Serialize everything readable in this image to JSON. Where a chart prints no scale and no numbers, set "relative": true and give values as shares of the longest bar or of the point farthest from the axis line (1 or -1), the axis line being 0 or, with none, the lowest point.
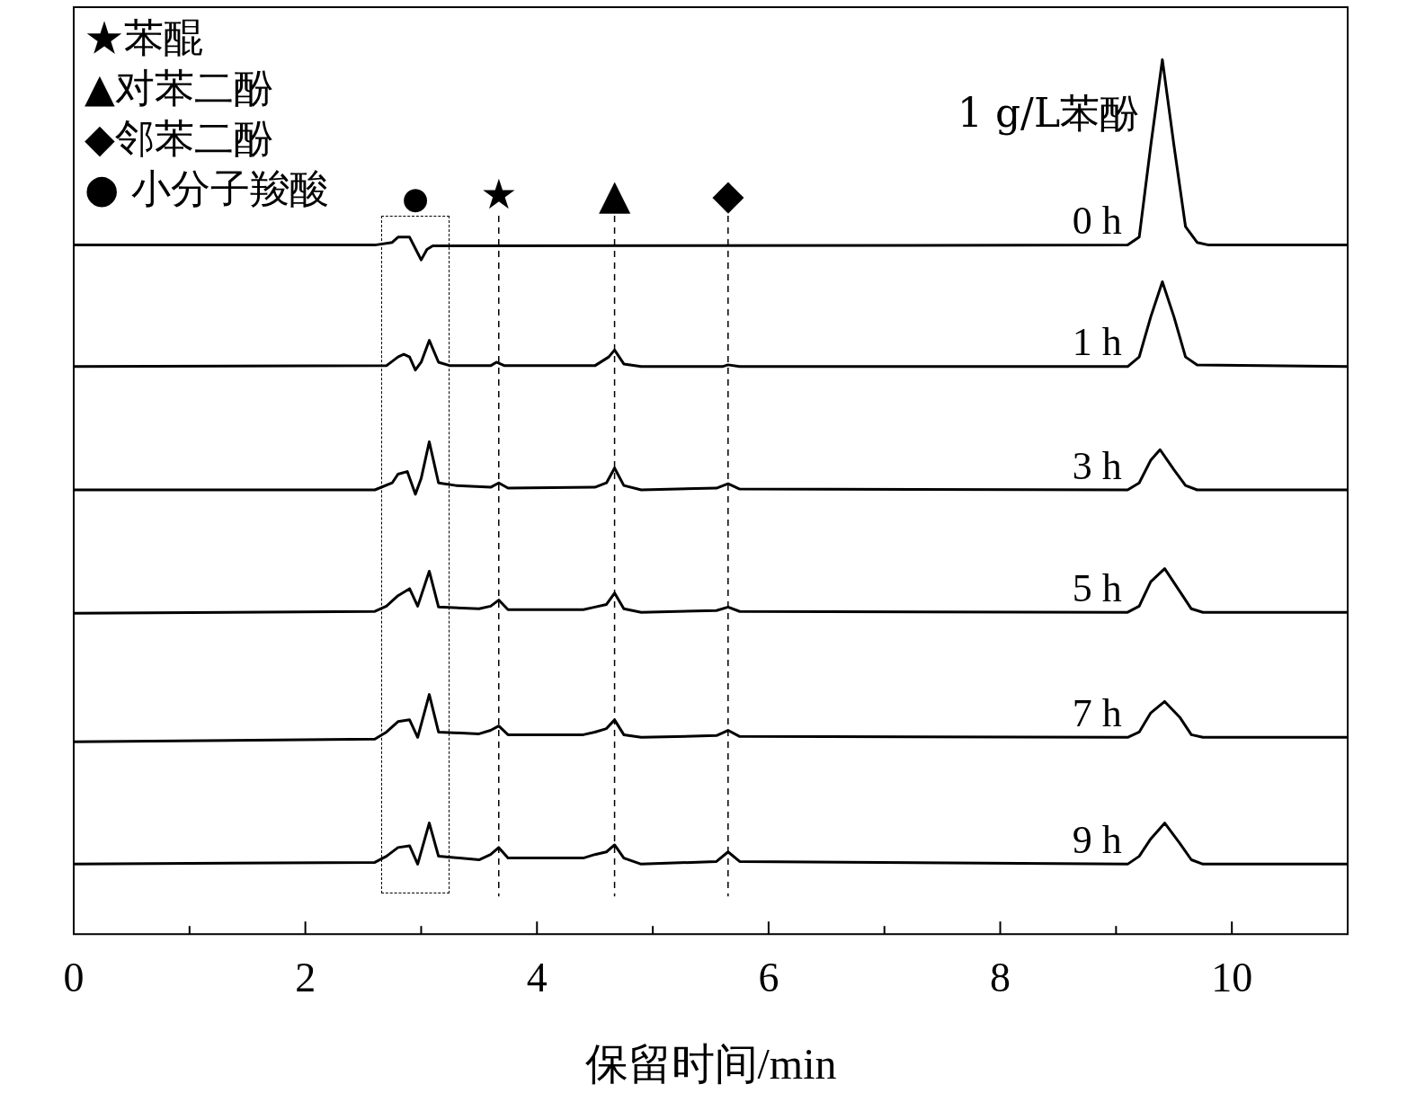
{
  "chart_data": {
    "type": "line",
    "relative": true,
    "xlabel": "保留时间/min",
    "xlim": [
      0,
      11
    ],
    "xticks": [
      0,
      {
        "value": 1,
        "label": null
      },
      2,
      {
        "value": 3,
        "label": null
      },
      4,
      {
        "value": 5,
        "label": null
      },
      6,
      {
        "value": 7,
        "label": null
      },
      8,
      {
        "value": 9,
        "label": null
      },
      10
    ],
    "tick_labels": "x",
    "grid": false,
    "legend": false,
    "marker": "none",
    "line_style": "solid",
    "annotations": [
      "★苯醌",
      "▲对苯二酚",
      "◆邻苯二酚",
      "● 小分子羧酸",
      "1 g/L苯酚",
      "●"
    ],
    "ref_lines": [
      {
        "axis": "x",
        "value": 3.67,
        "label": "★",
        "line_style": "dashed"
      },
      {
        "axis": "x",
        "value": 4.67,
        "label": "▲",
        "line_style": "dashed"
      },
      {
        "axis": "x",
        "value": 5.65,
        "label": "◆",
        "line_style": "dashed"
      }
    ],
    "series": [
      {
        "name": "0 h",
        "color": "#000000",
        "x": [
          0,
          2.6,
          2.75,
          2.8,
          2.9,
          2.95,
          3.0,
          3.05,
          3.1,
          9.1,
          9.2,
          9.3,
          9.4,
          9.5,
          9.6,
          9.7,
          9.8,
          11
        ],
        "values": [
          0.788,
          0.788,
          0.791,
          0.797,
          0.797,
          0.784,
          0.771,
          0.783,
          0.787,
          0.788,
          0.797,
          0.902,
          1.0,
          0.902,
          0.809,
          0.791,
          0.788,
          0.788
        ]
      },
      {
        "name": "1 h",
        "color": "#000000",
        "x": [
          0,
          2.7,
          2.8,
          2.85,
          2.9,
          2.95,
          3.0,
          3.07,
          3.15,
          3.25,
          3.6,
          3.65,
          3.72,
          4.5,
          4.62,
          4.67,
          4.75,
          4.9,
          5.6,
          5.65,
          5.75,
          9.1,
          9.2,
          9.3,
          9.4,
          9.5,
          9.6,
          9.7,
          11
        ],
        "values": [
          0.649,
          0.65,
          0.66,
          0.663,
          0.66,
          0.645,
          0.654,
          0.679,
          0.654,
          0.65,
          0.65,
          0.654,
          0.65,
          0.65,
          0.66,
          0.668,
          0.652,
          0.649,
          0.649,
          0.651,
          0.649,
          0.649,
          0.66,
          0.706,
          0.746,
          0.706,
          0.66,
          0.651,
          0.649
        ]
      },
      {
        "name": "3 h",
        "color": "#000000",
        "x": [
          0,
          2.6,
          2.75,
          2.8,
          2.88,
          2.95,
          3.0,
          3.07,
          3.15,
          3.3,
          3.6,
          3.67,
          3.75,
          4.5,
          4.6,
          4.67,
          4.75,
          4.9,
          5.55,
          5.65,
          5.75,
          9.1,
          9.2,
          9.3,
          9.38,
          9.5,
          9.6,
          9.7,
          11
        ],
        "values": [
          0.508,
          0.508,
          0.516,
          0.526,
          0.529,
          0.503,
          0.521,
          0.563,
          0.516,
          0.513,
          0.511,
          0.516,
          0.51,
          0.511,
          0.516,
          0.533,
          0.513,
          0.508,
          0.51,
          0.515,
          0.509,
          0.508,
          0.516,
          0.542,
          0.554,
          0.531,
          0.513,
          0.508,
          0.508
        ]
      },
      {
        "name": "5 h",
        "color": "#000000",
        "x": [
          0,
          2.6,
          2.7,
          2.8,
          2.9,
          2.97,
          3.07,
          3.15,
          3.5,
          3.6,
          3.67,
          3.75,
          4.4,
          4.5,
          4.6,
          4.67,
          4.75,
          4.9,
          5.55,
          5.65,
          5.75,
          9.1,
          9.2,
          9.3,
          9.42,
          9.55,
          9.65,
          9.75,
          11
        ],
        "values": [
          0.367,
          0.369,
          0.375,
          0.387,
          0.395,
          0.375,
          0.415,
          0.374,
          0.372,
          0.375,
          0.382,
          0.371,
          0.371,
          0.374,
          0.377,
          0.39,
          0.372,
          0.368,
          0.37,
          0.374,
          0.369,
          0.368,
          0.375,
          0.403,
          0.418,
          0.392,
          0.372,
          0.368,
          0.368
        ]
      },
      {
        "name": "7 h",
        "color": "#000000",
        "x": [
          0,
          2.6,
          2.7,
          2.8,
          2.9,
          2.97,
          3.07,
          3.15,
          3.5,
          3.6,
          3.67,
          3.75,
          4.4,
          4.5,
          4.6,
          4.67,
          4.75,
          4.9,
          5.55,
          5.65,
          5.75,
          9.1,
          9.2,
          9.3,
          9.42,
          9.55,
          9.65,
          9.75,
          11
        ],
        "values": [
          0.22,
          0.223,
          0.231,
          0.243,
          0.245,
          0.225,
          0.274,
          0.231,
          0.229,
          0.233,
          0.238,
          0.228,
          0.228,
          0.231,
          0.235,
          0.245,
          0.228,
          0.225,
          0.227,
          0.233,
          0.226,
          0.225,
          0.231,
          0.253,
          0.266,
          0.248,
          0.228,
          0.225,
          0.225
        ]
      },
      {
        "name": "9 h",
        "color": "#000000",
        "x": [
          0,
          2.6,
          2.7,
          2.8,
          2.9,
          2.97,
          3.07,
          3.15,
          3.5,
          3.6,
          3.67,
          3.75,
          4.4,
          4.5,
          4.6,
          4.67,
          4.75,
          4.9,
          5.55,
          5.65,
          5.75,
          9.1,
          9.2,
          9.3,
          9.42,
          9.55,
          9.65,
          9.75,
          11
        ],
        "values": [
          0.08,
          0.082,
          0.089,
          0.099,
          0.101,
          0.08,
          0.127,
          0.089,
          0.085,
          0.091,
          0.099,
          0.087,
          0.087,
          0.091,
          0.094,
          0.102,
          0.087,
          0.08,
          0.083,
          0.094,
          0.083,
          0.08,
          0.089,
          0.109,
          0.127,
          0.104,
          0.085,
          0.08,
          0.08
        ]
      }
    ]
  }
}
